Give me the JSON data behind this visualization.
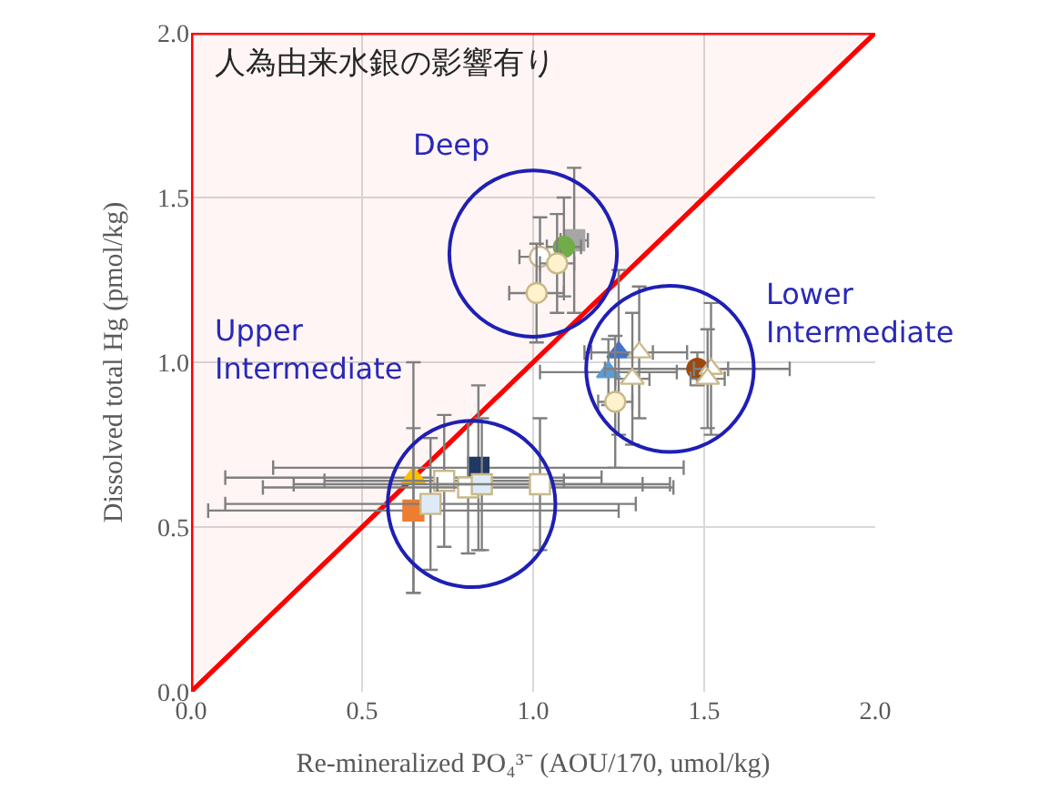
{
  "chart_data": {
    "type": "scatter",
    "xlabel": "Re-mineralized PO₄³⁻ (AOU/170, umol/kg)",
    "ylabel": "Dissolved total Hg (pmol/kg)",
    "xlim": [
      0,
      2
    ],
    "ylim": [
      0,
      2
    ],
    "xticks": [
      {
        "value": 0,
        "label": "0.0"
      },
      {
        "value": 0.5,
        "label": "0.5"
      },
      {
        "value": 1,
        "label": "1.0"
      },
      {
        "value": 1.5,
        "label": "1.5"
      },
      {
        "value": 2,
        "label": "2.0"
      }
    ],
    "yticks": [
      {
        "value": 0,
        "label": "0.0"
      },
      {
        "value": 0.5,
        "label": "0.5"
      },
      {
        "value": 1,
        "label": "1.0"
      },
      {
        "value": 1.5,
        "label": "1.5"
      },
      {
        "value": 2,
        "label": "2.0"
      }
    ],
    "grid": true,
    "annotations": [
      "人為由来水銀の影響有り",
      "Deep",
      "Lower\nIntermediate",
      "Upper\nIntermediate"
    ],
    "series": [
      {
        "type": "line",
        "x": [
          0,
          2
        ],
        "values": [
          0,
          2
        ],
        "color": "#ff0000",
        "marker": "none"
      },
      {
        "x": [
          1.12
        ],
        "values": [
          1.37
        ],
        "color": "#a6a6a6",
        "marker": "square",
        "xerrors": [
          0.04
        ],
        "errors": [
          0.22
        ]
      },
      {
        "x": [
          1.09
        ],
        "values": [
          1.35
        ],
        "color": "#70ad47",
        "marker": "circle",
        "xerrors": [
          0.05
        ],
        "errors": [
          0.15
        ]
      },
      {
        "x": [
          1.02
        ],
        "values": [
          1.32
        ],
        "color": "#ffffff",
        "marker": "circle",
        "xerrors": [
          0.06
        ],
        "errors": [
          0.12
        ]
      },
      {
        "x": [
          1.07
        ],
        "values": [
          1.3
        ],
        "color": "#fff2cc",
        "marker": "circle",
        "xerrors": [
          0.05
        ],
        "errors": [
          0.15
        ]
      },
      {
        "x": [
          1.01
        ],
        "values": [
          1.21
        ],
        "color": "#fff2cc",
        "marker": "circle",
        "xerrors": [
          0.08
        ],
        "errors": [
          0.15
        ]
      },
      {
        "x": [
          1.25
        ],
        "values": [
          1.03
        ],
        "color": "#4472c4",
        "marker": "triangle",
        "xerrors": [
          0.1
        ],
        "errors": [
          0.25
        ]
      },
      {
        "x": [
          1.31
        ],
        "values": [
          1.03
        ],
        "color": "#ffffff",
        "marker": "triangle",
        "xerrors": [
          0.14
        ],
        "errors": [
          0.2
        ]
      },
      {
        "x": [
          1.22
        ],
        "values": [
          0.97
        ],
        "color": "#5b9bd5",
        "marker": "triangle",
        "xerrors": [
          0.2
        ],
        "errors": [
          0.1
        ]
      },
      {
        "x": [
          1.48
        ],
        "values": [
          0.98
        ],
        "color": "#9e480e",
        "marker": "circle",
        "xerrors": [
          0.27
        ],
        "errors": [
          0.05
        ]
      },
      {
        "x": [
          1.52
        ],
        "values": [
          0.98
        ],
        "color": "#ffffff",
        "marker": "triangle",
        "xerrors": [
          0.05
        ],
        "errors": [
          0.2
        ]
      },
      {
        "x": [
          1.29
        ],
        "values": [
          0.95
        ],
        "color": "#ffffff",
        "marker": "triangle",
        "xerrors": [
          0.05
        ],
        "errors": [
          0.2
        ]
      },
      {
        "x": [
          1.51
        ],
        "values": [
          0.95
        ],
        "color": "#ffffff",
        "marker": "triangle",
        "xerrors": [
          0.05
        ],
        "errors": [
          0.15
        ]
      },
      {
        "x": [
          1.24
        ],
        "values": [
          0.88
        ],
        "color": "#fff2cc",
        "marker": "circle",
        "xerrors": [
          0.05
        ],
        "errors": [
          0.2
        ]
      },
      {
        "x": [
          0.65
        ],
        "values": [
          0.65
        ],
        "color": "#ffc000",
        "marker": "triangle",
        "xerrors": [
          0.55
        ],
        "errors": [
          0.35
        ]
      },
      {
        "x": [
          0.65
        ],
        "values": [
          0.55
        ],
        "color": "#ed7d31",
        "marker": "square",
        "xerrors": [
          0.6
        ],
        "errors": [
          0.25
        ]
      },
      {
        "x": [
          0.74
        ],
        "values": [
          0.64
        ],
        "color": "#ffffff",
        "marker": "square",
        "xerrors": [
          0.35
        ],
        "errors": [
          0.2
        ]
      },
      {
        "x": [
          0.7
        ],
        "values": [
          0.57
        ],
        "color": "#deebf7",
        "marker": "square",
        "xerrors": [
          0.6
        ],
        "errors": [
          0.2
        ]
      },
      {
        "x": [
          0.84
        ],
        "values": [
          0.68
        ],
        "color": "#1f3864",
        "marker": "square",
        "xerrors": [
          0.6
        ],
        "errors": [
          0.25
        ]
      },
      {
        "x": [
          0.81
        ],
        "values": [
          0.62
        ],
        "color": "#ffffff",
        "marker": "square",
        "xerrors": [
          0.6
        ],
        "errors": [
          0.2
        ]
      },
      {
        "x": [
          0.85
        ],
        "values": [
          0.63
        ],
        "color": "#deebf7",
        "marker": "square",
        "xerrors": [
          0.55
        ],
        "errors": [
          0.2
        ]
      },
      {
        "x": [
          1.02
        ],
        "values": [
          0.63
        ],
        "color": "#ffffff",
        "marker": "square",
        "xerrors": [
          0.3
        ],
        "errors": [
          0.2
        ]
      }
    ]
  }
}
